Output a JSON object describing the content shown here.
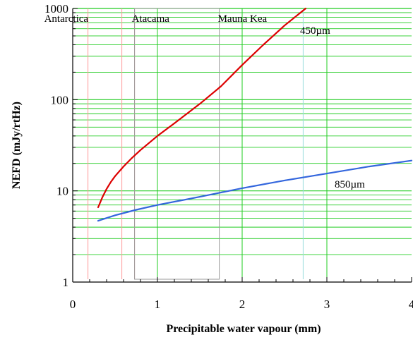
{
  "chart_data": {
    "type": "line",
    "title": "",
    "xlabel": "Precipitable water vapour (mm)",
    "ylabel": "NEFD (mJy/rtHz)",
    "xlim": [
      0,
      4
    ],
    "ylim": [
      1,
      1000
    ],
    "yscale": "log",
    "grid": true,
    "x_ticks": [
      "0",
      "1",
      "2",
      "3",
      "4"
    ],
    "y_ticks": [
      "1",
      "10",
      "100",
      "1000"
    ],
    "colors": {
      "major_grid": "#22cc22",
      "minor_grid": "#22cc22",
      "antarctica_line": "#ff9999",
      "atacama_line": "#ffaaaa",
      "mauna_kea_line": "#99dddd",
      "box": "#999999",
      "axis": "#000000"
    },
    "regions": [
      {
        "name": "Antarctica",
        "x_start": 0.18,
        "x_end": 0.58
      },
      {
        "name": "Atacama",
        "x_start": 0.73,
        "x_end": 1.73
      },
      {
        "name": "Mauna Kea",
        "x_start": 1.73,
        "x_end": 2.72
      }
    ],
    "series": [
      {
        "name": "450µm",
        "color": "#dd0000",
        "x": [
          0.3,
          0.35,
          0.4,
          0.45,
          0.5,
          0.6,
          0.7,
          0.8,
          1.0,
          1.2,
          1.5,
          1.75,
          2.0,
          2.25,
          2.5,
          2.75
        ],
        "y": [
          6.6,
          8.5,
          10.5,
          12.5,
          14.5,
          18.5,
          23,
          28,
          40,
          55,
          90,
          140,
          240,
          400,
          650,
          1000
        ]
      },
      {
        "name": "850µm",
        "color": "#3366dd",
        "x": [
          0.3,
          0.5,
          0.75,
          1.0,
          1.5,
          2.0,
          2.5,
          3.0,
          3.5,
          4.0
        ],
        "y": [
          4.7,
          5.4,
          6.2,
          7.0,
          8.6,
          10.7,
          13.0,
          15.5,
          18.5,
          21.5
        ]
      }
    ]
  }
}
